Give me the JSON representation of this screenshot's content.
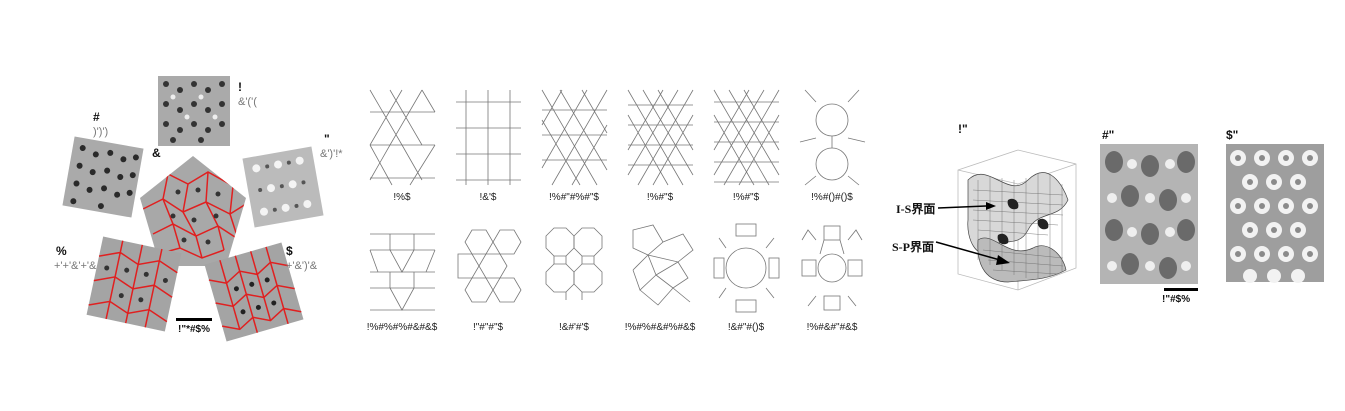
{
  "panel_a": {
    "top": {
      "label": "!",
      "sub": "&'('("
    },
    "left": {
      "label": "#",
      "sub": ")')')"
    },
    "right": {
      "label": "\"",
      "sub": "&')'!*"
    },
    "center": {
      "label": "&"
    },
    "bl": {
      "label": "%",
      "sub": "+'+'&'+'&"
    },
    "br": {
      "label": "$",
      "sub": "+'&')'&"
    },
    "scale": "!\"*#$%"
  },
  "panel_b": {
    "captions": [
      "!%$",
      "!&'$",
      "!%#\"#%#\"$",
      "!%#\"$",
      "!%#\"$",
      "!%#()#()$",
      "!%#%#%#&#&$",
      "!\"#\"#\"$",
      "!&#'#'$",
      "!%#%#&#%#&$",
      "!&#\"#()$",
      "!%#&#\"#&$"
    ]
  },
  "panel_c": {
    "label_1": "!\"",
    "label_2": "#\"",
    "label_3": "$\"",
    "ann_is": "I-S界面",
    "ann_sp": "S-P界面",
    "scale": "!\"#$%"
  },
  "colors": {
    "tiling_line": "#e02020",
    "halftone_dark": "#333333",
    "halftone_light": "#dddddd"
  }
}
